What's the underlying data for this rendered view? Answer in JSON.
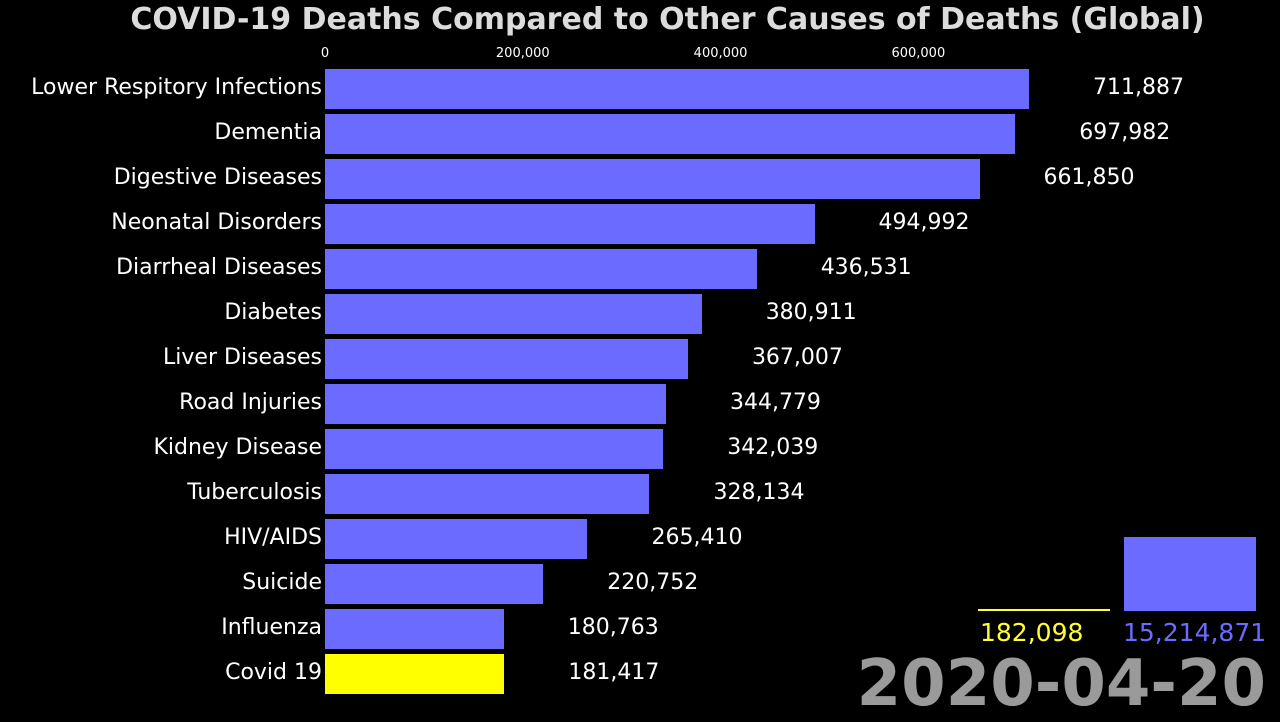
{
  "chart_data": {
    "type": "bar",
    "orientation": "horizontal",
    "title": "COVID-19 Deaths Compared to Other Causes of Deaths (Global)",
    "xlim": [
      0,
      711887
    ],
    "x_ticks": [
      "0",
      "200,000",
      "400,000",
      "600,000"
    ],
    "x_tick_values": [
      0,
      200000,
      400000,
      600000
    ],
    "bar_color": "#6b6bff",
    "highlight_color": "#ffff00",
    "categories": [
      "Lower Respitory Infections",
      "Dementia",
      "Digestive Diseases",
      "Neonatal Disorders",
      "Diarrheal Diseases",
      "Diabetes",
      "Liver Diseases",
      "Road Injuries",
      "Kidney Disease",
      "Tuberculosis",
      "HIV/AIDS",
      "Suicide",
      "Influenza",
      "Covid 19"
    ],
    "values": [
      711887,
      697982,
      661850,
      494992,
      436531,
      380911,
      367007,
      344779,
      342039,
      328134,
      265410,
      220752,
      180763,
      181417
    ],
    "value_labels": [
      "711,887",
      "697,982",
      "661,850",
      "494,992",
      "436,531",
      "380,911",
      "367,007",
      "344,779",
      "342,039",
      "328,134",
      "265,410",
      "220,752",
      "180,763",
      "181,417"
    ],
    "highlight_category": "Covid 19"
  },
  "totals": {
    "covid_total": "182,098",
    "covid_color": "#ffff33",
    "other_total": "15,214,871",
    "other_color": "#6b6bff"
  },
  "date": "2020-04-20"
}
